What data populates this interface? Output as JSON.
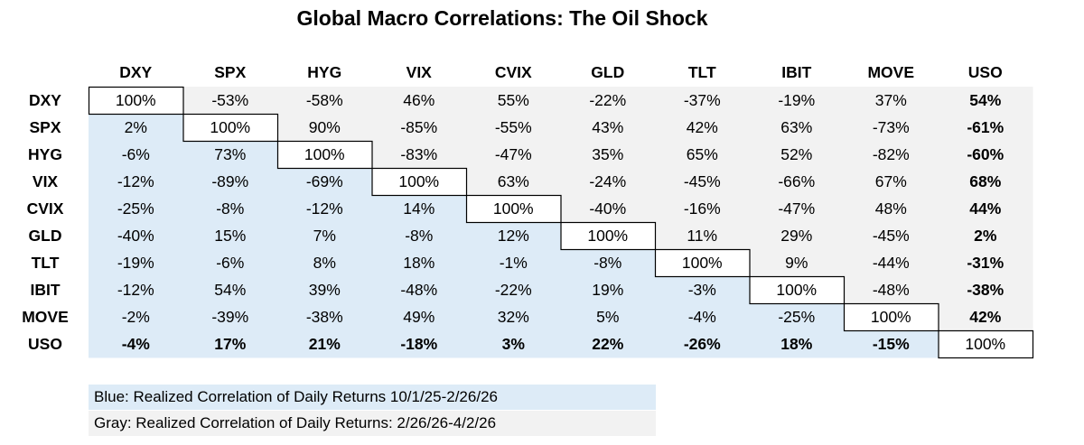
{
  "title": "Global Macro Correlations: The Oil Shock",
  "chart_data": {
    "type": "heatmap",
    "title": "Global Macro Correlations: The Oil Shock",
    "columns": [
      "DXY",
      "SPX",
      "HYG",
      "VIX",
      "CVIX",
      "GLD",
      "TLT",
      "IBIT",
      "MOVE",
      "USO"
    ],
    "rows": [
      "DXY",
      "SPX",
      "HYG",
      "VIX",
      "CVIX",
      "GLD",
      "TLT",
      "IBIT",
      "MOVE",
      "USO"
    ],
    "values": [
      [
        "100%",
        "-53%",
        "-58%",
        "46%",
        "55%",
        "-22%",
        "-37%",
        "-19%",
        "37%",
        "54%"
      ],
      [
        "2%",
        "100%",
        "90%",
        "-85%",
        "-55%",
        "43%",
        "42%",
        "63%",
        "-73%",
        "-61%"
      ],
      [
        "-6%",
        "73%",
        "100%",
        "-83%",
        "-47%",
        "35%",
        "65%",
        "52%",
        "-82%",
        "-60%"
      ],
      [
        "-12%",
        "-89%",
        "-69%",
        "100%",
        "63%",
        "-24%",
        "-45%",
        "-66%",
        "67%",
        "68%"
      ],
      [
        "-25%",
        "-8%",
        "-12%",
        "14%",
        "100%",
        "-40%",
        "-16%",
        "-47%",
        "48%",
        "44%"
      ],
      [
        "-40%",
        "15%",
        "7%",
        "-8%",
        "12%",
        "100%",
        "11%",
        "29%",
        "-45%",
        "2%"
      ],
      [
        "-19%",
        "-6%",
        "8%",
        "18%",
        "-1%",
        "-8%",
        "100%",
        "9%",
        "-44%",
        "-31%"
      ],
      [
        "-12%",
        "54%",
        "39%",
        "-48%",
        "-22%",
        "19%",
        "-3%",
        "100%",
        "-48%",
        "-38%"
      ],
      [
        "-2%",
        "-39%",
        "-38%",
        "49%",
        "32%",
        "5%",
        "-4%",
        "-25%",
        "100%",
        "42%"
      ],
      [
        "-4%",
        "17%",
        "21%",
        "-18%",
        "3%",
        "22%",
        "-26%",
        "18%",
        "-15%",
        "100%"
      ]
    ],
    "lower_triangle_color": "#ddebf7",
    "upper_triangle_color": "#f2f2f2",
    "legend": [
      {
        "text": "Blue: Realized Correlation of Daily Returns 10/1/25-2/26/26",
        "color": "#ddebf7"
      },
      {
        "text": "Gray: Realized Correlation of Daily Returns: 2/26/26-4/2/26",
        "color": "#f2f2f2"
      }
    ]
  }
}
